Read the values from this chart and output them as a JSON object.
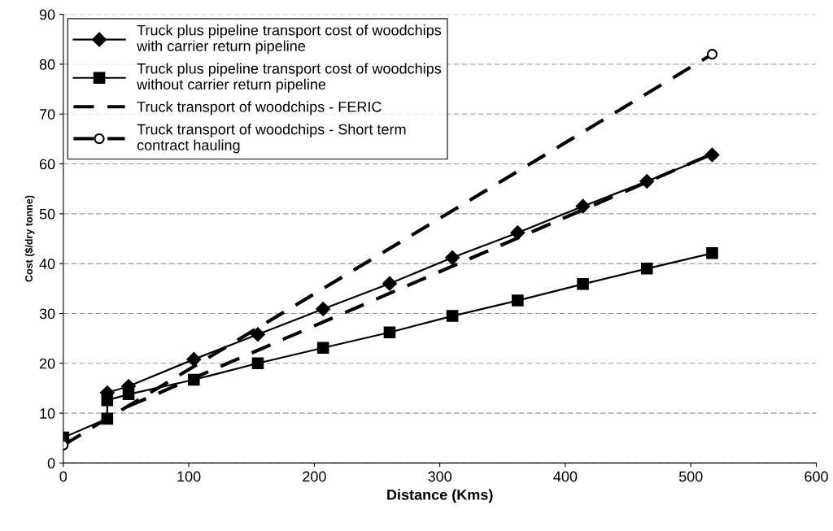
{
  "chart_data": {
    "type": "line",
    "xlabel": "Distance (Kms)",
    "ylabel": "Cost ($/dry tonne)",
    "xlim": [
      0,
      600
    ],
    "xticks": [
      0,
      100,
      200,
      300,
      400,
      500,
      600
    ],
    "ylim": [
      0,
      90
    ],
    "yticks": [
      0,
      10,
      20,
      30,
      40,
      50,
      60,
      70,
      80,
      90
    ],
    "grid": "y",
    "legend": "top left",
    "series": [
      {
        "name": "Truck plus pipeline transport cost of woodchips\nwith carrier return pipeline",
        "color": "#000000",
        "marker": "diamond",
        "line_style": "solid",
        "x": [
          35,
          52,
          104,
          155,
          207,
          260,
          310,
          362,
          414,
          465,
          517
        ],
        "values": [
          14.1,
          15.4,
          20.8,
          25.8,
          30.9,
          36,
          41.2,
          46.2,
          51.5,
          56.5,
          61.8
        ]
      },
      {
        "name": "Truck plus pipeline transport cost of woodchips\nwithout carrier return pipeline",
        "color": "#000000",
        "marker": "square",
        "line_style": "solid",
        "x": [
          0,
          35,
          35,
          52,
          104,
          155,
          207,
          260,
          310,
          362,
          414,
          465,
          517
        ],
        "values": [
          5.1,
          8.9,
          12.6,
          13.8,
          16.7,
          20,
          23.1,
          26.2,
          29.5,
          32.6,
          35.9,
          39,
          42.1
        ]
      },
      {
        "name": "Truck transport of woodchips - FERIC",
        "color": "#000000",
        "marker": "none",
        "line_style": "dashed",
        "x": [
          51,
          517
        ],
        "values": [
          11.3,
          62
        ]
      },
      {
        "name": "Truck transport of woodchips - Short term\ncontract hauling",
        "color": "#000000",
        "marker": "circle",
        "line_style": "dashed",
        "x": [
          0,
          517
        ],
        "values": [
          3.6,
          82
        ]
      }
    ]
  }
}
